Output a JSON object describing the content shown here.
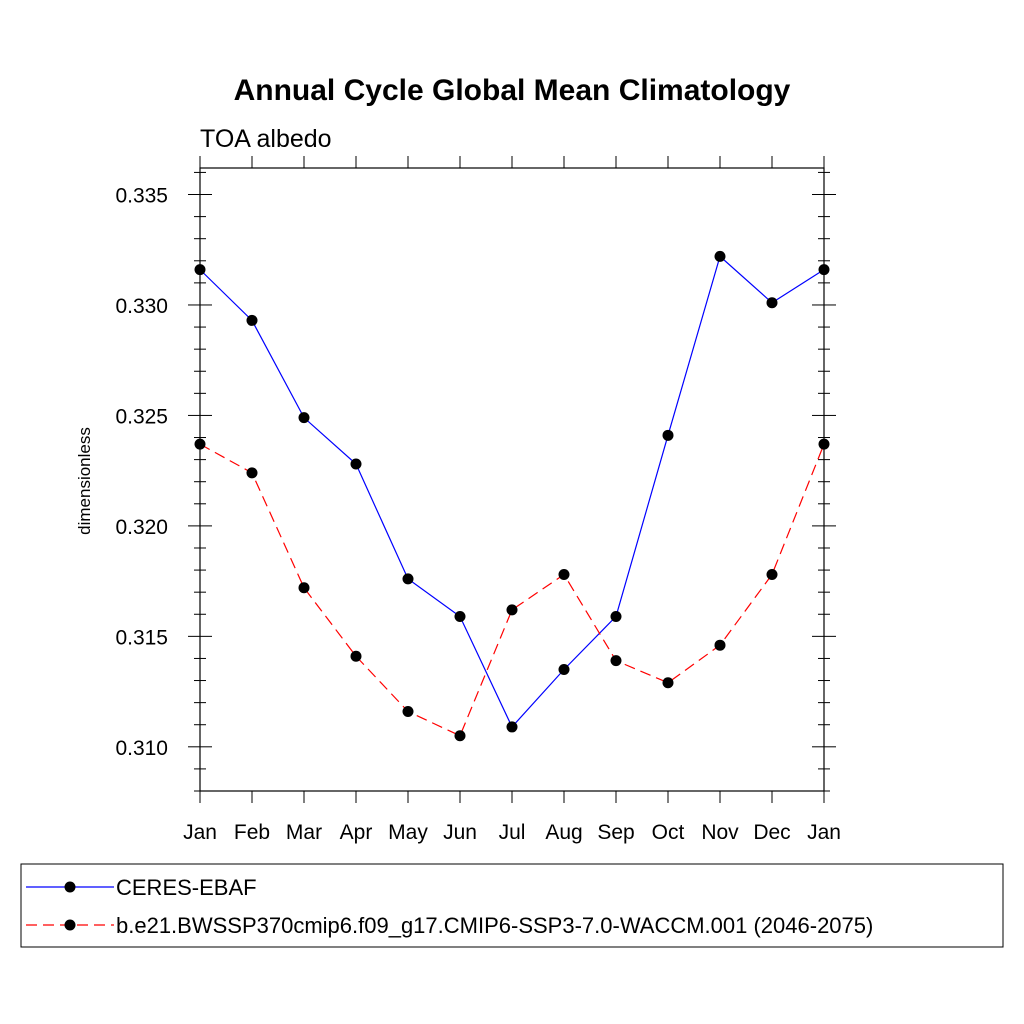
{
  "chart_data": {
    "type": "line",
    "title": "Annual Cycle Global Mean Climatology",
    "subtitle": "TOA albedo",
    "xlabel": "",
    "ylabel": "dimensionless",
    "categories": [
      "Jan",
      "Feb",
      "Mar",
      "Apr",
      "May",
      "Jun",
      "Jul",
      "Aug",
      "Sep",
      "Oct",
      "Nov",
      "Dec",
      "Jan"
    ],
    "ylim": [
      0.308,
      0.3362
    ],
    "yticks": [
      0.31,
      0.315,
      0.32,
      0.325,
      0.33,
      0.335
    ],
    "ytick_labels": [
      "0.310",
      "0.315",
      "0.320",
      "0.325",
      "0.330",
      "0.335"
    ],
    "grid": false,
    "legend_position": "bottom",
    "series": [
      {
        "name": "CERES-EBAF",
        "color": "#0000ff",
        "dash": "solid",
        "values": [
          0.3316,
          0.3293,
          0.3249,
          0.3228,
          0.3176,
          0.3159,
          0.3109,
          0.3135,
          0.3159,
          0.3241,
          0.3322,
          0.3301,
          0.3316
        ]
      },
      {
        "name": "b.e21.BWSSP370cmip6.f09_g17.CMIP6-SSP3-7.0-WACCM.001 (2046-2075)",
        "color": "#ff0000",
        "dash": "dashed",
        "values": [
          0.3237,
          0.3224,
          0.3172,
          0.3141,
          0.3116,
          0.3105,
          0.3162,
          0.3178,
          0.3139,
          0.3129,
          0.3146,
          0.3178,
          0.3237
        ]
      }
    ]
  }
}
